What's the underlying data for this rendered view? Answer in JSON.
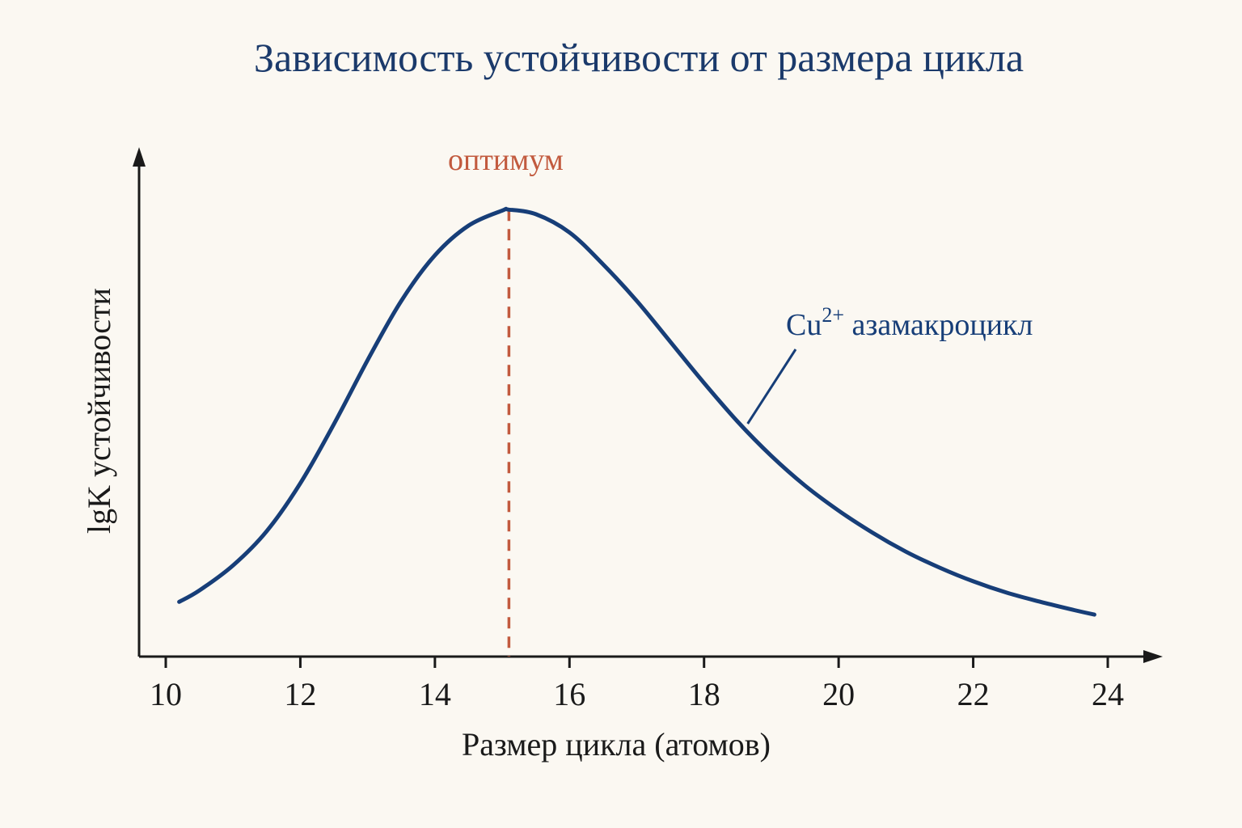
{
  "colors": {
    "background": "#fbf8f2",
    "title": "#1b3a6b",
    "curve": "#173e78",
    "optimum": "#c25a3e",
    "axis": "#1a1a1a"
  },
  "chart_data": {
    "type": "line",
    "title": "Зависимость устойчивости от размера цикла",
    "xlabel": "Размер цикла (атомов)",
    "ylabel": "lgK устойчивости",
    "xlim": [
      9.6,
      25.5
    ],
    "ylim": [
      0,
      10
    ],
    "xticks": [
      10,
      12,
      14,
      16,
      18,
      20,
      22,
      24
    ],
    "yticks": [],
    "grid": false,
    "series": [
      {
        "name": "",
        "x": [
          10.2,
          10.5,
          11,
          11.5,
          12,
          12.5,
          13,
          13.5,
          14,
          14.5,
          15,
          15.1,
          15.5,
          16,
          16.5,
          17,
          17.5,
          18,
          18.5,
          19,
          19.5,
          20,
          20.5,
          21,
          21.5,
          22,
          22.5,
          23,
          23.5,
          23.8
        ],
        "y": [
          1.2,
          1.45,
          2.0,
          2.75,
          3.8,
          5.1,
          6.5,
          7.8,
          8.8,
          9.45,
          9.78,
          9.8,
          9.7,
          9.3,
          8.6,
          7.8,
          6.9,
          6.0,
          5.15,
          4.4,
          3.75,
          3.2,
          2.72,
          2.3,
          1.95,
          1.65,
          1.4,
          1.2,
          1.02,
          0.92
        ]
      }
    ],
    "annotations": {
      "optimum": {
        "x": 15.1,
        "label": "оптимум"
      },
      "curve_label": {
        "ion": "Cu",
        "charge": "2+",
        "rest": " азамакроцикл",
        "point_x": 18.6
      }
    }
  }
}
